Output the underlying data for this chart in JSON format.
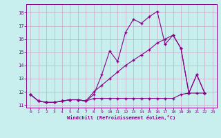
{
  "xlabel": "Windchill (Refroidissement éolien,°C)",
  "bg_color": "#c8eeee",
  "grid_color": "#c8a8c8",
  "line_color": "#880088",
  "xlim_min": -0.5,
  "xlim_max": 23.5,
  "ylim_min": 10.8,
  "ylim_max": 18.65,
  "yticks": [
    11,
    12,
    13,
    14,
    15,
    16,
    17,
    18
  ],
  "xticks": [
    0,
    1,
    2,
    3,
    4,
    5,
    6,
    7,
    8,
    9,
    10,
    11,
    12,
    13,
    14,
    15,
    16,
    17,
    18,
    19,
    20,
    21,
    22,
    23
  ],
  "s1_x": [
    0,
    1,
    2,
    3,
    4,
    5,
    6,
    7,
    8,
    9,
    10,
    11,
    12,
    13,
    14,
    15,
    16,
    17,
    18,
    19,
    20,
    21,
    22
  ],
  "s1_y": [
    11.8,
    11.3,
    11.2,
    11.2,
    11.3,
    11.4,
    11.4,
    11.3,
    11.8,
    13.3,
    15.1,
    14.3,
    16.5,
    17.5,
    17.2,
    17.7,
    18.1,
    15.6,
    16.3,
    15.3,
    11.9,
    13.3,
    11.9
  ],
  "s2_x": [
    0,
    1,
    2,
    3,
    4,
    5,
    6,
    7,
    8,
    9,
    10,
    11,
    12,
    13,
    14,
    15,
    16,
    17,
    18,
    19,
    20,
    21,
    22
  ],
  "s2_y": [
    11.8,
    11.3,
    11.2,
    11.2,
    11.3,
    11.4,
    11.4,
    11.3,
    12.0,
    12.5,
    13.0,
    13.5,
    14.0,
    14.4,
    14.8,
    15.2,
    15.7,
    16.0,
    16.3,
    15.3,
    11.9,
    13.3,
    11.9
  ],
  "s3_x": [
    0,
    1,
    2,
    3,
    4,
    5,
    6,
    7,
    8,
    9,
    10,
    11,
    12,
    13,
    14,
    15,
    16,
    17,
    18,
    19,
    20,
    21,
    22
  ],
  "s3_y": [
    11.8,
    11.3,
    11.2,
    11.2,
    11.3,
    11.4,
    11.4,
    11.3,
    11.5,
    11.5,
    11.5,
    11.5,
    11.5,
    11.5,
    11.5,
    11.5,
    11.5,
    11.5,
    11.5,
    11.8,
    11.9,
    11.9,
    11.9
  ]
}
